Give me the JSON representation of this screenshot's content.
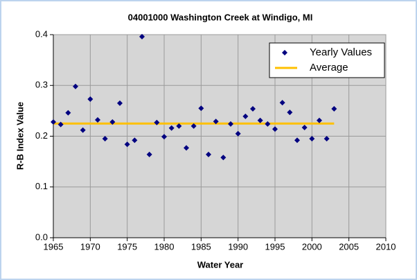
{
  "chart_data": {
    "type": "scatter",
    "title": "04001000 Washington Creek at Windigo, MI",
    "x_label": "Water Year",
    "y_label": "R-B Index Value",
    "xlim": [
      1965,
      2010
    ],
    "xticks": [
      1965,
      1970,
      1975,
      1980,
      1985,
      1990,
      1995,
      2000,
      2005,
      2010
    ],
    "ylim": [
      0,
      0.4
    ],
    "yticks": [
      {
        "value": 0,
        "label": "0.0"
      },
      0.1,
      0.2,
      0.3,
      0.4
    ],
    "grid": true,
    "legend": "upper right",
    "series": [
      {
        "name": "Yearly Values",
        "type": "scatter",
        "color": "#000080",
        "x": [
          1965,
          1966,
          1967,
          1968,
          1969,
          1970,
          1971,
          1972,
          1973,
          1974,
          1975,
          1976,
          1977,
          1978,
          1979,
          1980,
          1981,
          1982,
          1983,
          1984,
          1985,
          1986,
          1987,
          1988,
          1989,
          1990,
          1991,
          1992,
          1993,
          1994,
          1995,
          1996,
          1997,
          1998,
          1999,
          2000,
          2001,
          2002,
          2003
        ],
        "values": [
          0.228,
          0.223,
          0.246,
          0.298,
          0.212,
          0.273,
          0.232,
          0.195,
          0.228,
          0.265,
          0.184,
          0.192,
          0.396,
          0.164,
          0.227,
          0.199,
          0.216,
          0.22,
          0.177,
          0.22,
          0.255,
          0.164,
          0.229,
          0.158,
          0.224,
          0.205,
          0.239,
          0.254,
          0.231,
          0.224,
          0.214,
          0.266,
          0.247,
          0.192,
          0.217,
          0.195,
          0.231,
          0.195,
          0.254
        ]
      },
      {
        "name": "Average",
        "type": "line",
        "color": "#ffc000",
        "x": [
          1965,
          2003
        ],
        "values": [
          0.225,
          0.225
        ]
      }
    ]
  }
}
